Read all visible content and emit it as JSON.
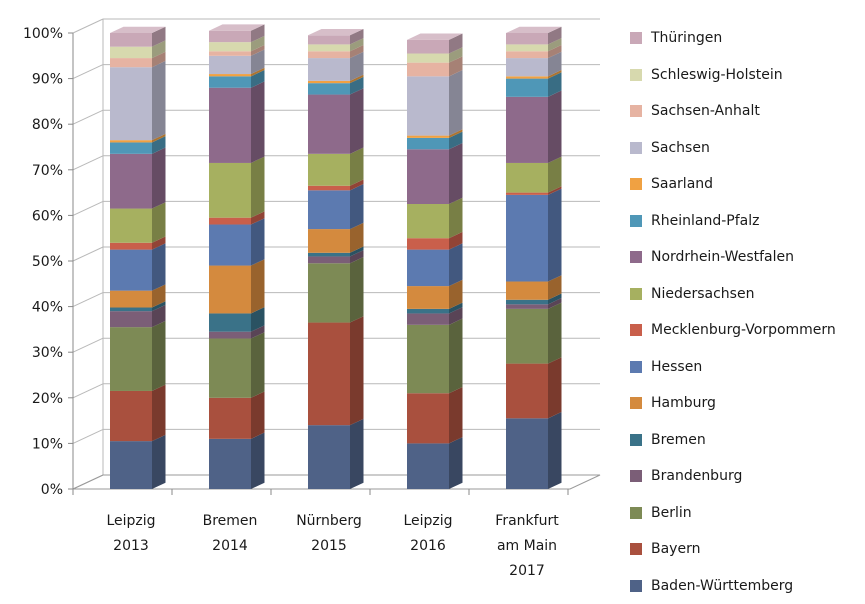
{
  "chart_data": {
    "type": "bar",
    "stacked": true,
    "three_d": true,
    "title": "",
    "xlabel": "",
    "ylabel": "",
    "ylim": [
      0,
      100
    ],
    "yticks": [
      "0%",
      "10%",
      "20%",
      "30%",
      "40%",
      "50%",
      "60%",
      "70%",
      "80%",
      "90%",
      "100%"
    ],
    "categories": [
      [
        "Leipzig",
        "2013"
      ],
      [
        "Bremen",
        "2014"
      ],
      [
        "Nürnberg",
        "2015"
      ],
      [
        "Leipzig",
        "2016"
      ],
      [
        "Frankfurt",
        "am Main",
        "2017"
      ]
    ],
    "series": [
      {
        "name": "Baden-Württemberg",
        "color": "#4f6287",
        "values": [
          10.5,
          11,
          14,
          10,
          15.5
        ]
      },
      {
        "name": "Bayern",
        "color": "#a9503e",
        "values": [
          11,
          9,
          22.5,
          11,
          12
        ]
      },
      {
        "name": "Berlin",
        "color": "#7d8a55",
        "values": [
          14,
          13,
          13,
          15,
          12
        ]
      },
      {
        "name": "Brandenburg",
        "color": "#7b5e77",
        "values": [
          3.5,
          1.5,
          1.5,
          2.5,
          1
        ]
      },
      {
        "name": "Bremen",
        "color": "#3a7288",
        "values": [
          0.8,
          4,
          0.8,
          1,
          1
        ]
      },
      {
        "name": "Hamburg",
        "color": "#d48a3e",
        "values": [
          3.7,
          10.5,
          5.2,
          5,
          4
        ]
      },
      {
        "name": "Hessen",
        "color": "#5c7ab0",
        "values": [
          9,
          9,
          8.5,
          8,
          19
        ]
      },
      {
        "name": "Mecklenburg-Vorpommern",
        "color": "#c95f4b",
        "values": [
          1.5,
          1.5,
          1,
          2.5,
          0.5
        ]
      },
      {
        "name": "Niedersachsen",
        "color": "#a6b060",
        "values": [
          7.5,
          12,
          7,
          7.5,
          6.5
        ]
      },
      {
        "name": "Nordrhein-Westfalen",
        "color": "#8e6a8b",
        "values": [
          12,
          16.5,
          13,
          12,
          14.5
        ]
      },
      {
        "name": "Rheinland-Pfalz",
        "color": "#4f97b7",
        "values": [
          2.5,
          2.5,
          2.5,
          2.5,
          4
        ]
      },
      {
        "name": "Saarland",
        "color": "#f0a142",
        "values": [
          0.5,
          0.5,
          0.5,
          0.5,
          0.5
        ]
      },
      {
        "name": "Sachsen",
        "color": "#b9b9cd",
        "values": [
          16,
          4,
          5,
          13,
          4
        ]
      },
      {
        "name": "Sachsen-Anhalt",
        "color": "#e6b3a2",
        "values": [
          2,
          1,
          1.5,
          3,
          1.5
        ]
      },
      {
        "name": "Schleswig-Holstein",
        "color": "#d7d9ae",
        "values": [
          2.5,
          2,
          1.5,
          2,
          1.5
        ]
      },
      {
        "name": "Thüringen",
        "color": "#c9a8b7",
        "values": [
          3,
          2.5,
          2,
          3,
          2.5
        ]
      }
    ],
    "legend_position": "right",
    "legend_order": "reverse",
    "grid": true
  }
}
